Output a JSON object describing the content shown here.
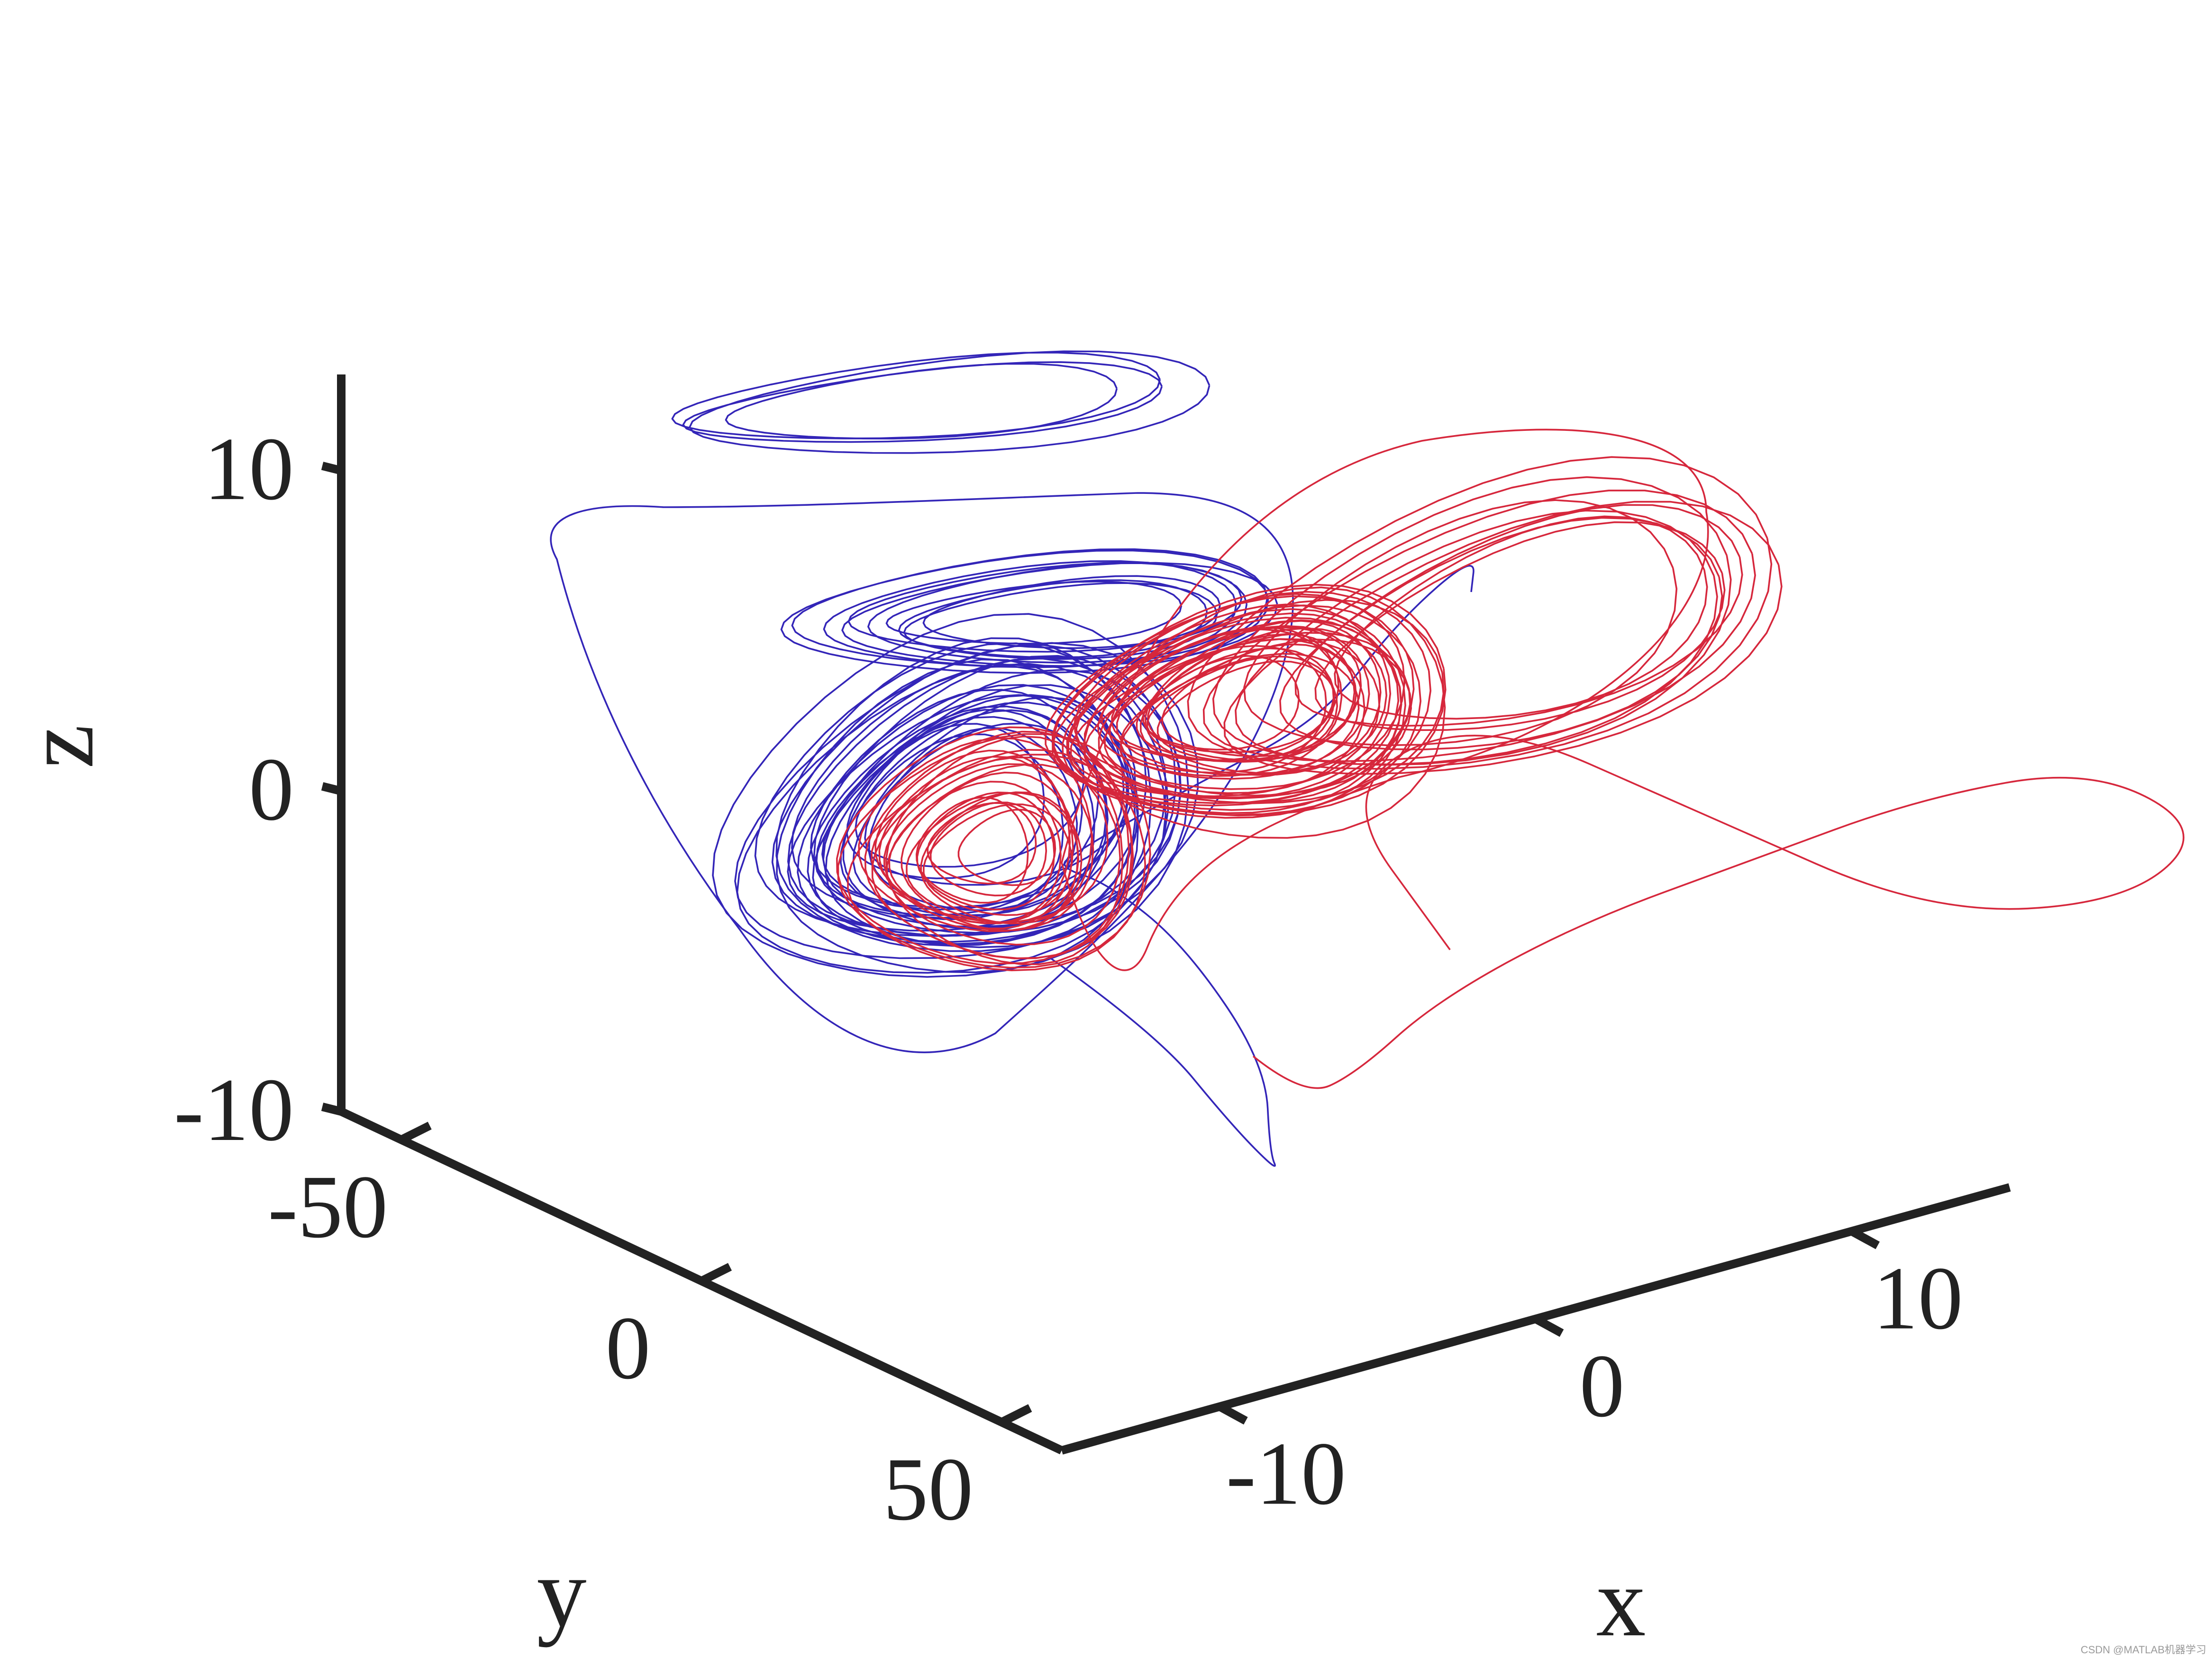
{
  "chart_data": {
    "type": "line",
    "projection": "3d",
    "title": "",
    "xlabel": "x",
    "ylabel": "y",
    "zlabel": "z",
    "xlim": [
      -15,
      15
    ],
    "ylim": [
      -60,
      60
    ],
    "zlim": [
      -10,
      13
    ],
    "xticks": [
      -10,
      0,
      10
    ],
    "xtick_labels": [
      "-10",
      "0",
      "10"
    ],
    "yticks": [
      -50,
      0,
      50
    ],
    "ytick_labels": [
      "-50",
      "0",
      "50"
    ],
    "zticks": [
      -10,
      0,
      10
    ],
    "ztick_labels": [
      "-10",
      "0",
      "10"
    ],
    "grid": false,
    "legend": "none",
    "series": [
      {
        "color": "#3325b8",
        "description_points": "chaotic 3D trajectory, lobe centered near x=-6, z=0; large excursions up to z=13",
        "x": [
          -12,
          -9,
          -6,
          -3,
          -1,
          0,
          -2,
          -5,
          -8,
          -10,
          -9,
          -6,
          -3,
          0,
          1
        ],
        "y": [
          30,
          20,
          5,
          -15,
          -35,
          -45,
          -40,
          -25,
          -5,
          15,
          25,
          20,
          5,
          -10,
          -20
        ],
        "z": [
          3,
          0,
          -4,
          -7,
          -8,
          -6,
          -2,
          1,
          3,
          5,
          8,
          10,
          12,
          13,
          11
        ]
      },
      {
        "color": "#d6273c",
        "description_points": "chaotic 3D trajectory, lobe centered near x=2, z=2; wide outer loop toward x=12",
        "x": [
          -4,
          -2,
          0,
          2,
          4,
          6,
          8,
          10,
          11,
          9,
          6,
          3,
          0,
          -2,
          -1
        ],
        "y": [
          -10,
          -20,
          -30,
          -35,
          -30,
          -20,
          -10,
          0,
          10,
          15,
          10,
          0,
          -10,
          -15,
          -5
        ],
        "z": [
          -3,
          -5,
          -5,
          -3,
          0,
          3,
          6,
          8,
          7,
          5,
          4,
          6,
          8,
          5,
          1
        ]
      }
    ]
  },
  "watermark_text": "CSDN @MATLAB机器学习"
}
